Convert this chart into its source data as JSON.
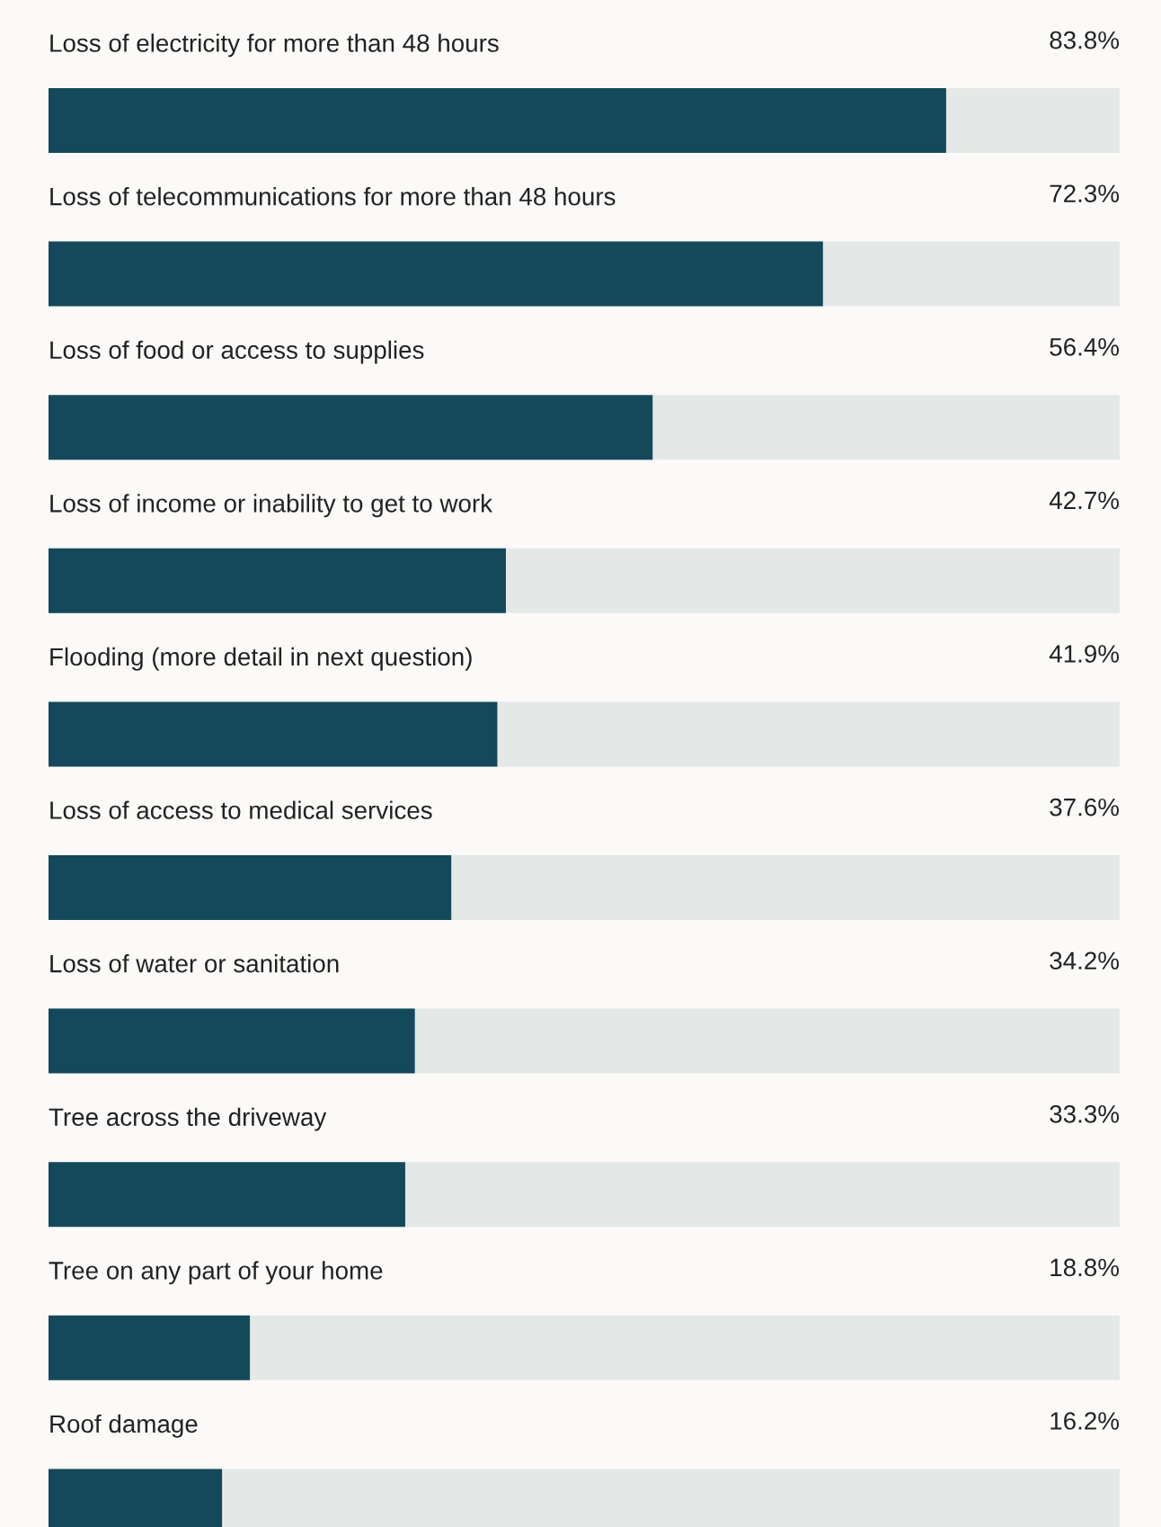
{
  "chart_data": {
    "type": "bar",
    "orientation": "horizontal",
    "categories": [
      "Loss of electricity for more than 48 hours",
      "Loss of telecommunications for more than 48 hours",
      "Loss of food or access to supplies",
      "Loss of income or inability to get to work",
      "Flooding (more detail in next question)",
      "Loss of access to medical services",
      "Loss of water or sanitation",
      "Tree across the driveway",
      "Tree on any part of your home",
      "Roof damage"
    ],
    "values": [
      83.8,
      72.3,
      56.4,
      42.7,
      41.9,
      37.6,
      34.2,
      33.3,
      18.8,
      16.2
    ],
    "value_labels": [
      "83.8%",
      "72.3%",
      "56.4%",
      "42.7%",
      "41.9%",
      "37.6%",
      "34.2%",
      "33.3%",
      "18.8%",
      "16.2%"
    ],
    "color": "#13495a",
    "xlim": [
      0,
      100
    ]
  }
}
